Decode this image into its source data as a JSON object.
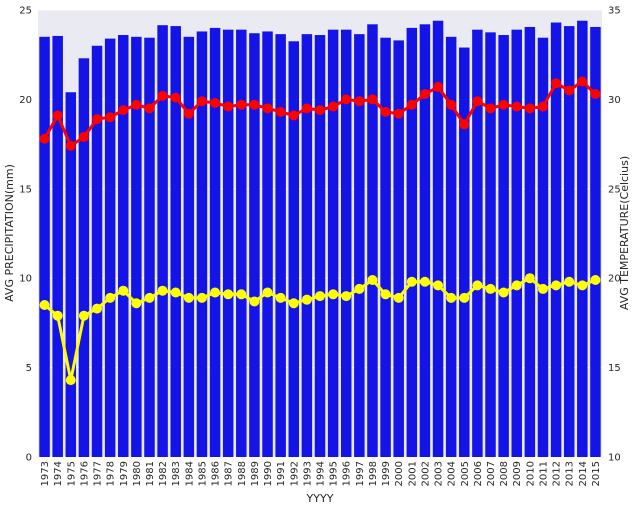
{
  "chart_data": {
    "type": "bar",
    "xlabel": "YYYY",
    "ylabel": "AVG PRECIPITATION(mm)",
    "y2label": "AVG TEMPERATURE(Celcius)",
    "ylim": [
      0,
      25
    ],
    "y2lim": [
      10,
      35
    ],
    "yticks": [
      0,
      5,
      10,
      15,
      20,
      25
    ],
    "y2ticks": [
      10,
      15,
      20,
      25,
      30,
      35
    ],
    "grid": true,
    "categories": [
      "1973",
      "1974",
      "1975",
      "1976",
      "1977",
      "1978",
      "1979",
      "1980",
      "1981",
      "1982",
      "1983",
      "1984",
      "1985",
      "1986",
      "1987",
      "1988",
      "1989",
      "1990",
      "1991",
      "1992",
      "1993",
      "1994",
      "1995",
      "1996",
      "1997",
      "1998",
      "1999",
      "2000",
      "2001",
      "2002",
      "2003",
      "2004",
      "2005",
      "2006",
      "2007",
      "2008",
      "2009",
      "2010",
      "2011",
      "2012",
      "2013",
      "2014",
      "2015"
    ],
    "bars": {
      "color": "#1414e6",
      "values": [
        23.5,
        23.55,
        20.4,
        22.3,
        23.0,
        23.4,
        23.6,
        23.5,
        23.45,
        24.15,
        24.1,
        23.5,
        23.8,
        24.0,
        23.9,
        23.9,
        23.7,
        23.8,
        23.65,
        23.25,
        23.65,
        23.6,
        23.9,
        23.9,
        23.65,
        24.2,
        23.45,
        23.3,
        24.0,
        24.2,
        24.4,
        23.5,
        22.9,
        23.9,
        23.75,
        23.6,
        23.9,
        24.05,
        23.45,
        24.3,
        24.1,
        24.4,
        24.05
      ]
    },
    "lines": [
      {
        "color": "#ff0000",
        "axis": "right",
        "values": [
          27.8,
          29.1,
          27.4,
          27.9,
          28.9,
          29.0,
          29.4,
          29.7,
          29.5,
          30.2,
          30.1,
          29.2,
          29.9,
          29.8,
          29.6,
          29.7,
          29.7,
          29.5,
          29.3,
          29.1,
          29.5,
          29.4,
          29.6,
          30.0,
          29.9,
          30.0,
          29.3,
          29.2,
          29.7,
          30.3,
          30.7,
          29.7,
          28.6,
          29.9,
          29.5,
          29.7,
          29.6,
          29.5,
          29.6,
          30.9,
          30.5,
          31.0,
          30.3
        ]
      },
      {
        "color": "#ffff00",
        "axis": "right",
        "values": [
          18.5,
          17.9,
          14.3,
          17.9,
          18.3,
          18.9,
          19.3,
          18.6,
          18.9,
          19.3,
          19.2,
          18.9,
          18.9,
          19.2,
          19.1,
          19.1,
          18.7,
          19.2,
          18.9,
          18.6,
          18.8,
          19.0,
          19.1,
          19.0,
          19.4,
          19.9,
          19.1,
          18.9,
          19.8,
          19.8,
          19.6,
          18.9,
          18.9,
          19.6,
          19.4,
          19.2,
          19.6,
          20.0,
          19.4,
          19.6,
          19.8,
          19.6,
          19.9
        ]
      }
    ]
  }
}
